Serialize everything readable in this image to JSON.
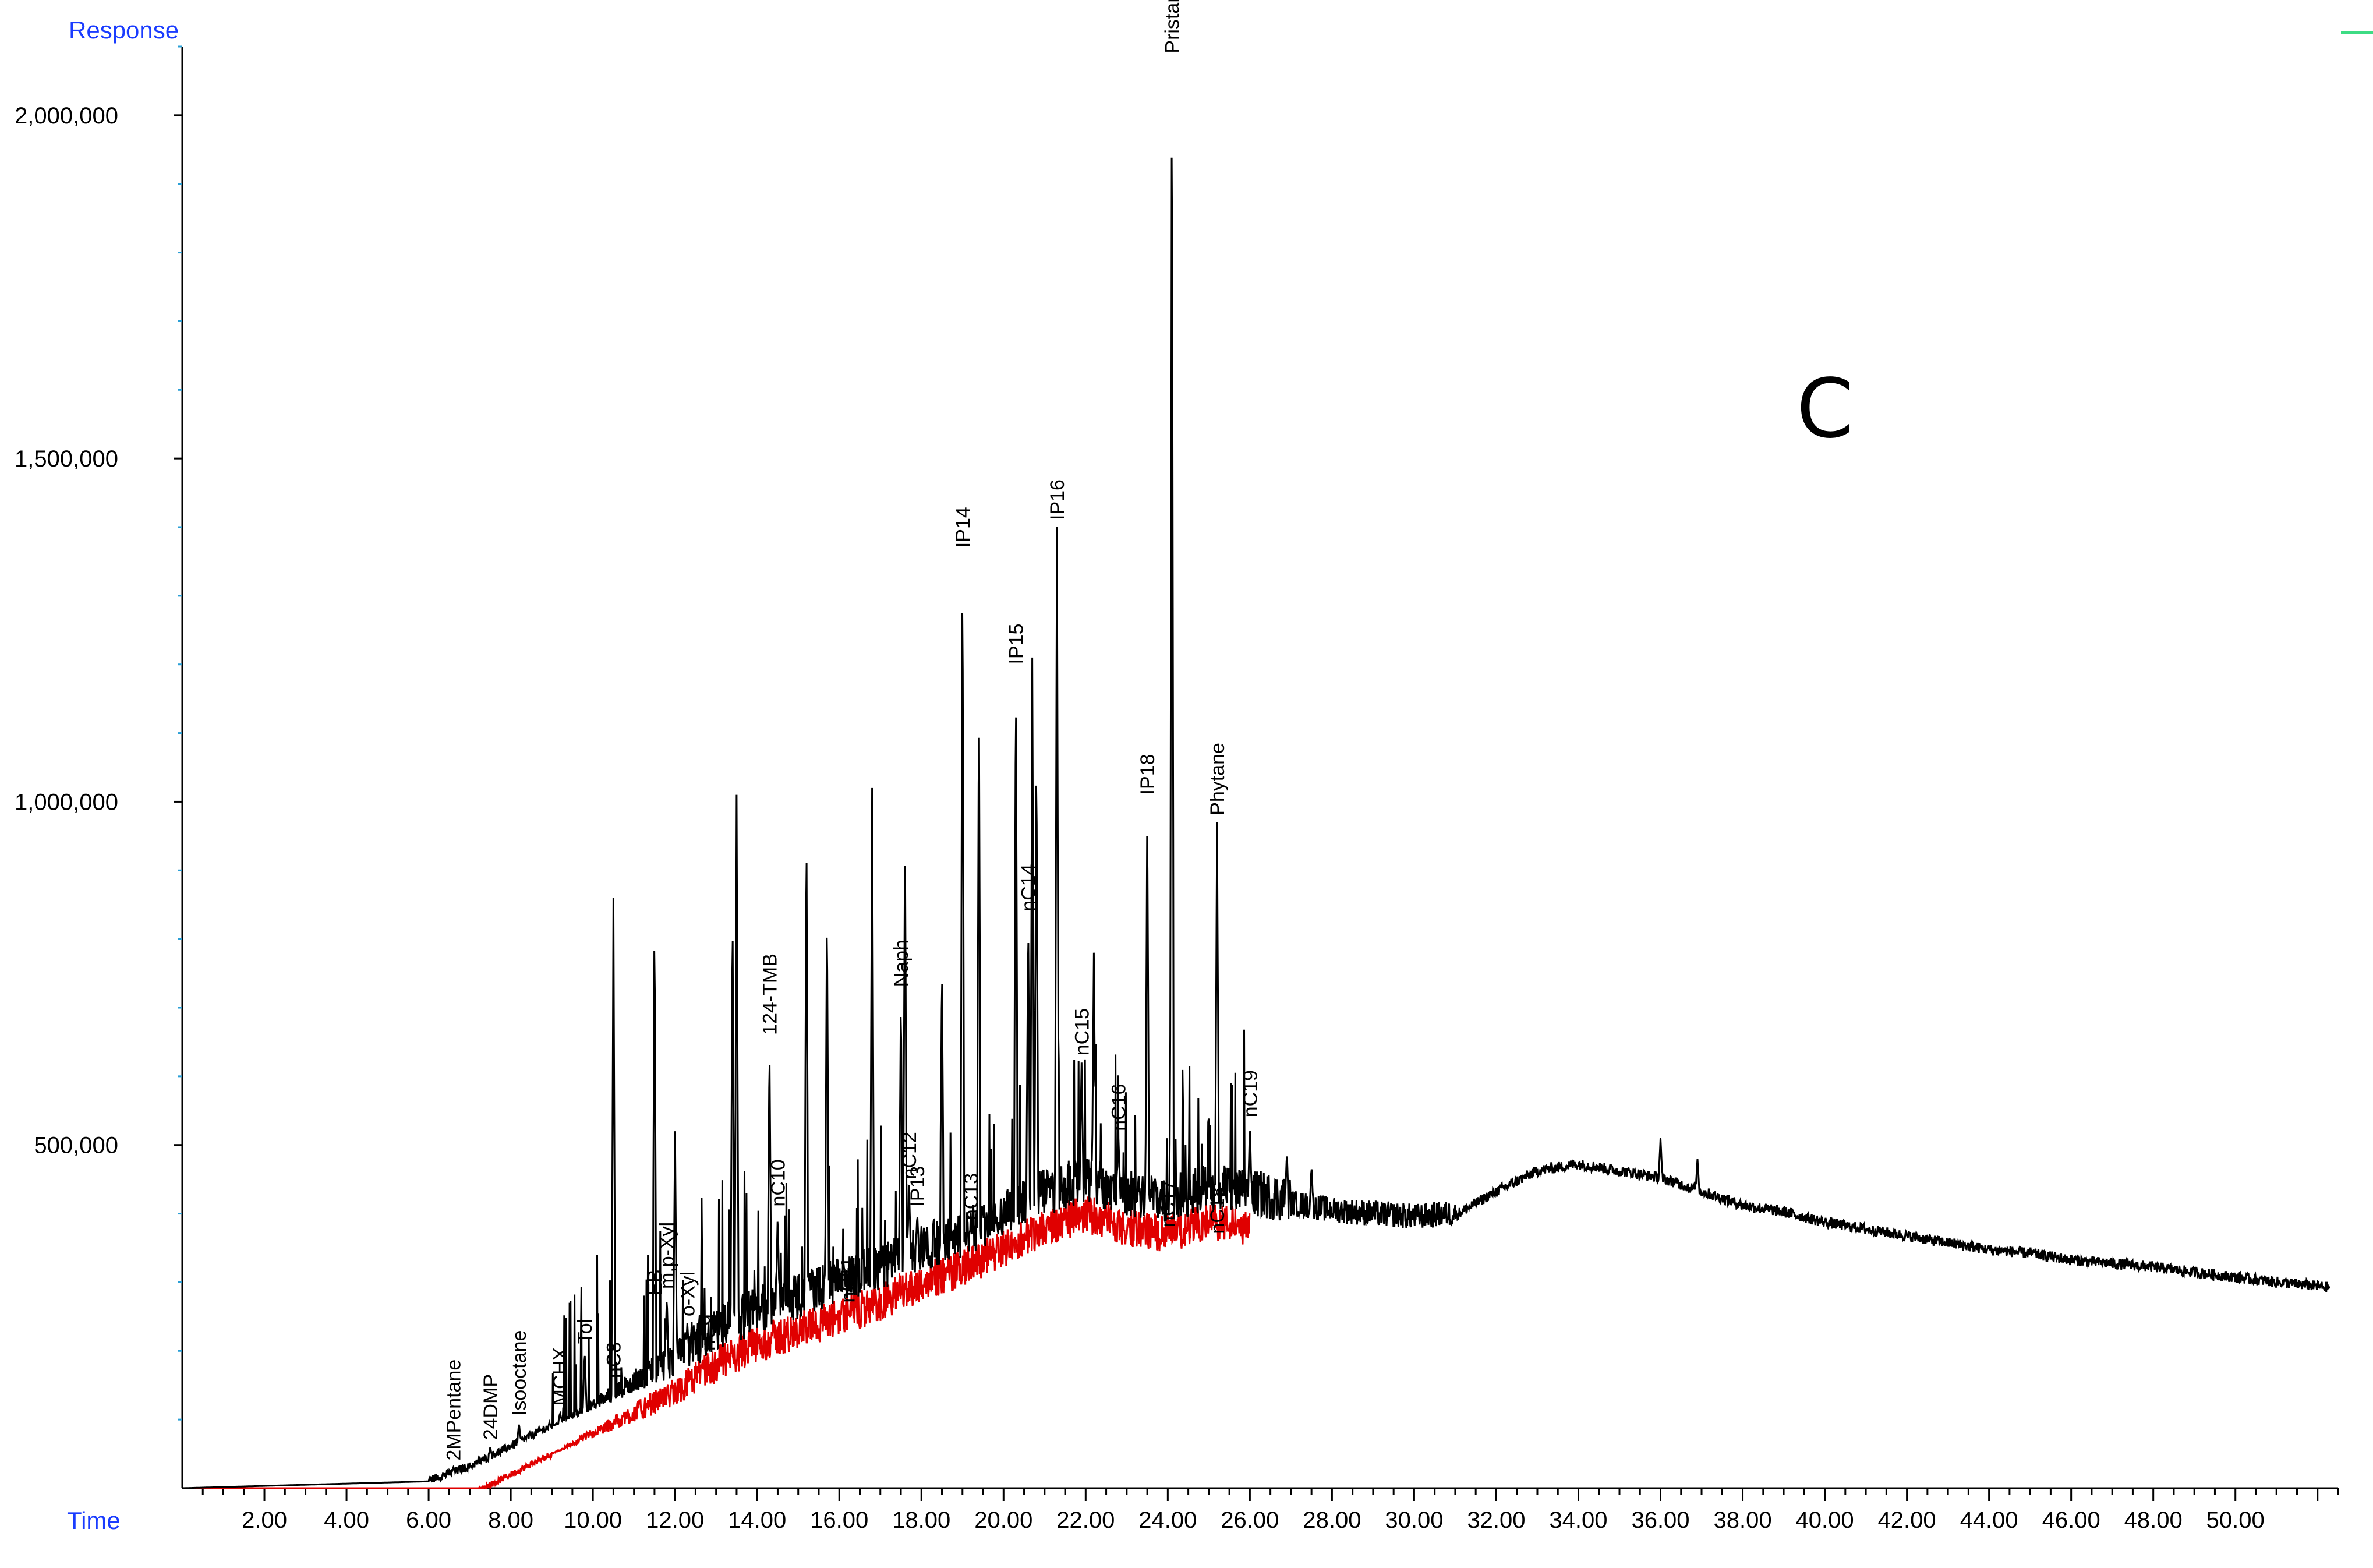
{
  "panel_letter": "C",
  "colors": {
    "axis_labels": "#1a3cff",
    "trace": "#000000",
    "baseline_trace": "#e00000",
    "legend_mark": "#3ddc84",
    "tick_minor": "#2a9fd6"
  },
  "chart_data": {
    "type": "line",
    "title": "",
    "xlabel": "Time",
    "ylabel": "Response",
    "xlim": [
      0,
      52.5
    ],
    "ylim": [
      0,
      2100000
    ],
    "grid": false,
    "x_ticks": [
      2,
      4,
      6,
      8,
      10,
      12,
      14,
      16,
      18,
      20,
      22,
      24,
      26,
      28,
      30,
      32,
      34,
      36,
      38,
      40,
      42,
      44,
      46,
      48,
      50
    ],
    "x_tick_labels": [
      "2.00",
      "4.00",
      "6.00",
      "8.00",
      "10.00",
      "12.00",
      "14.00",
      "16.00",
      "18.00",
      "20.00",
      "22.00",
      "24.00",
      "26.00",
      "28.00",
      "30.00",
      "32.00",
      "34.00",
      "36.00",
      "38.00",
      "40.00",
      "42.00",
      "44.00",
      "46.00",
      "48.00",
      "50.00"
    ],
    "y_ticks": [
      500000,
      1000000,
      1500000,
      2000000
    ],
    "y_tick_labels": [
      "500,000",
      "1,000,000",
      "1,500,000",
      "2,000,000"
    ],
    "baseline": {
      "x": [
        0,
        6,
        7,
        8,
        9,
        10,
        11,
        12,
        13,
        14,
        15,
        16,
        17,
        18,
        19,
        20,
        21,
        22,
        23,
        24,
        25,
        26,
        27,
        28,
        29,
        30,
        31,
        32,
        33,
        34,
        35,
        36,
        37,
        38,
        39,
        40,
        41,
        42,
        43,
        44,
        45,
        46,
        47,
        48,
        49,
        50,
        51,
        52.3
      ],
      "y": [
        0,
        10000,
        30000,
        60000,
        90000,
        120000,
        150000,
        180000,
        220000,
        250000,
        270000,
        290000,
        310000,
        340000,
        360000,
        390000,
        420000,
        440000,
        420000,
        410000,
        430000,
        420000,
        410000,
        400000,
        395000,
        390000,
        395000,
        430000,
        460000,
        470000,
        460000,
        450000,
        430000,
        410000,
        400000,
        385000,
        375000,
        365000,
        355000,
        345000,
        340000,
        330000,
        325000,
        320000,
        312000,
        305000,
        298000,
        290000
      ]
    },
    "peaks": [
      {
        "label": "2MPentane",
        "x": 6.6,
        "y": 30000
      },
      {
        "label": "24DMP",
        "x": 7.5,
        "y": 60000
      },
      {
        "label": "Isooctane",
        "x": 8.2,
        "y": 95000
      },
      {
        "label": "MCHX",
        "x": 9.2,
        "y": 110000
      },
      {
        "label": "Tol",
        "x": 9.8,
        "y": 200000
      },
      {
        "label": "nC8",
        "x": 10.5,
        "y": 150000
      },
      {
        "label": "EB",
        "x": 11.5,
        "y": 270000
      },
      {
        "label": "m,p-Xyl",
        "x": 11.8,
        "y": 280000
      },
      {
        "label": "o-Xyl",
        "x": 12.3,
        "y": 240000
      },
      {
        "label": "nC9",
        "x": 12.8,
        "y": 190000
      },
      {
        "label": "nC10",
        "x": 14.5,
        "y": 400000
      },
      {
        "label": "124-TMB",
        "x": 14.3,
        "y": 650000
      },
      {
        "label": "nC11",
        "x": 16.2,
        "y": 260000
      },
      {
        "label": "Naph",
        "x": 17.5,
        "y": 720000
      },
      {
        "label": "IP13",
        "x": 17.9,
        "y": 400000
      },
      {
        "label": "nC12",
        "x": 17.7,
        "y": 440000
      },
      {
        "label": "nC13",
        "x": 19.2,
        "y": 380000
      },
      {
        "label": "IP14",
        "x": 19.0,
        "y": 1360000
      },
      {
        "label": "IP15",
        "x": 20.3,
        "y": 1190000
      },
      {
        "label": "nC14",
        "x": 20.6,
        "y": 830000
      },
      {
        "label": "IP16",
        "x": 21.3,
        "y": 1400000
      },
      {
        "label": "nC15",
        "x": 21.9,
        "y": 620000
      },
      {
        "label": "nC16",
        "x": 22.8,
        "y": 510000
      },
      {
        "label": "IP18",
        "x": 23.5,
        "y": 1000000
      },
      {
        "label": "nC17",
        "x": 24.0,
        "y": 370000
      },
      {
        "label": "Pristane",
        "x": 24.1,
        "y": 2080000
      },
      {
        "label": "nC18",
        "x": 25.2,
        "y": 360000
      },
      {
        "label": "Phytane",
        "x": 25.2,
        "y": 970000
      },
      {
        "label": "nC19",
        "x": 26.0,
        "y": 530000
      }
    ],
    "extra_spikes": [
      {
        "x": 10.5,
        "y": 860000
      },
      {
        "x": 11.5,
        "y": 840000
      },
      {
        "x": 12.0,
        "y": 520000
      },
      {
        "x": 13.5,
        "y": 1010000
      },
      {
        "x": 13.4,
        "y": 850000
      },
      {
        "x": 15.2,
        "y": 970000
      },
      {
        "x": 15.7,
        "y": 850000
      },
      {
        "x": 16.8,
        "y": 1020000
      },
      {
        "x": 17.6,
        "y": 960000
      },
      {
        "x": 18.5,
        "y": 770000
      },
      {
        "x": 19.4,
        "y": 1160000
      },
      {
        "x": 20.8,
        "y": 1080000
      },
      {
        "x": 20.7,
        "y": 1210000
      },
      {
        "x": 22.2,
        "y": 780000
      },
      {
        "x": 26.9,
        "y": 490000
      },
      {
        "x": 27.5,
        "y": 470000
      },
      {
        "x": 36.0,
        "y": 510000
      },
      {
        "x": 36.9,
        "y": 480000
      }
    ]
  }
}
